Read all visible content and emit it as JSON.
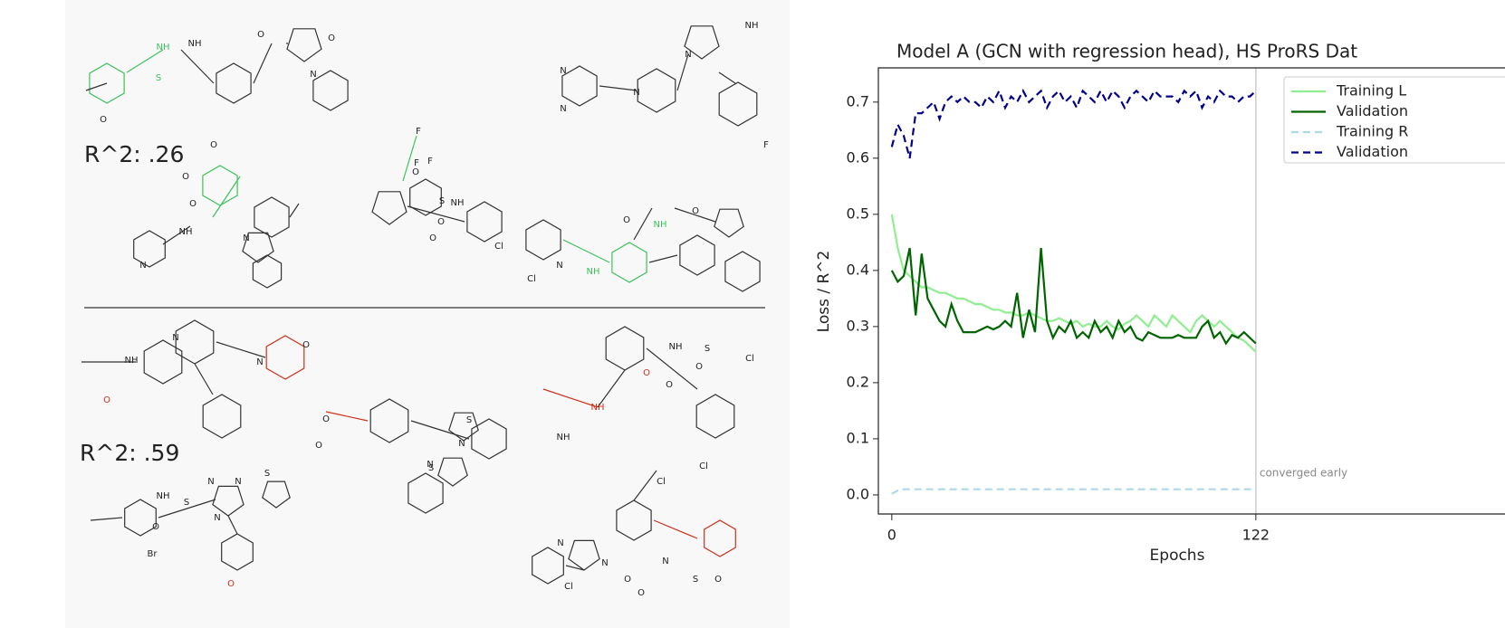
{
  "figure": {
    "group_labels": [
      "R^2: .26",
      "R^2: .59"
    ],
    "molecules": [
      {
        "atoms": [
          "NH",
          "S",
          "NH",
          "O",
          "O",
          "N",
          "O"
        ]
      },
      {
        "atoms": [
          "NH",
          "N",
          "N",
          "N",
          "N",
          "F"
        ]
      },
      {
        "atoms": [
          "O",
          "O",
          "O",
          "NH",
          "N",
          "N"
        ]
      },
      {
        "atoms": [
          "F",
          "F",
          "F",
          "O",
          "S",
          "O",
          "O",
          "NH"
        ]
      },
      {
        "atoms": [
          "O",
          "O",
          "NH",
          "Cl",
          "Cl",
          "NH",
          "N"
        ]
      },
      {
        "atoms": [
          "NH",
          "O",
          "N",
          "N",
          "O"
        ]
      },
      {
        "atoms": [
          "O",
          "O",
          "S",
          "N",
          "S",
          "N"
        ]
      },
      {
        "atoms": [
          "NH",
          "S",
          "O",
          "O",
          "Cl",
          "O",
          "NH",
          "NH",
          "Cl"
        ]
      },
      {
        "atoms": [
          "NH",
          "O",
          "S",
          "N",
          "N",
          "N",
          "S",
          "Br",
          "O"
        ]
      },
      {
        "atoms": [
          "Cl",
          "N",
          "N",
          "O",
          "N",
          "O",
          "Cl",
          "S",
          "O"
        ]
      }
    ]
  },
  "chart_data": {
    "type": "line",
    "title": "Model A (GCN with regression head), HS ProRS Dat",
    "x_label": "Epochs",
    "y_label": "Loss / R^2",
    "annotation": "converged early",
    "converged_at": 122,
    "x": [
      0,
      2,
      4,
      6,
      8,
      10,
      12,
      14,
      16,
      18,
      20,
      22,
      24,
      26,
      28,
      30,
      32,
      34,
      36,
      38,
      40,
      42,
      44,
      46,
      48,
      50,
      52,
      54,
      56,
      58,
      60,
      62,
      64,
      66,
      68,
      70,
      72,
      74,
      76,
      78,
      80,
      82,
      84,
      86,
      88,
      90,
      92,
      94,
      96,
      98,
      100,
      102,
      104,
      106,
      108,
      110,
      112,
      114,
      116,
      118,
      120,
      122
    ],
    "xlim": [
      -4.5,
      205.5
    ],
    "xticks": [
      0,
      122
    ],
    "ylim": [
      -0.034,
      0.761
    ],
    "yticks": [
      {
        "value": 0,
        "label": "0.0"
      },
      0.1,
      0.2,
      0.3,
      0.4,
      0.5,
      0.6,
      0.7
    ],
    "series": [
      {
        "name": "Training L",
        "color": "#90ee90",
        "dash": "solid",
        "values": [
          0.5,
          0.44,
          0.4,
          0.39,
          0.38,
          0.37,
          0.37,
          0.365,
          0.36,
          0.36,
          0.355,
          0.35,
          0.35,
          0.345,
          0.34,
          0.34,
          0.335,
          0.33,
          0.33,
          0.325,
          0.325,
          0.32,
          0.32,
          0.325,
          0.32,
          0.315,
          0.31,
          0.31,
          0.315,
          0.31,
          0.305,
          0.31,
          0.3,
          0.305,
          0.3,
          0.3,
          0.31,
          0.3,
          0.295,
          0.305,
          0.31,
          0.32,
          0.31,
          0.3,
          0.32,
          0.31,
          0.3,
          0.32,
          0.31,
          0.3,
          0.29,
          0.31,
          0.32,
          0.31,
          0.3,
          0.31,
          0.3,
          0.29,
          0.28,
          0.275,
          0.265,
          0.255
        ]
      },
      {
        "name": "Validation",
        "color": "#006400",
        "dash": "solid",
        "values": [
          0.4,
          0.38,
          0.39,
          0.44,
          0.32,
          0.43,
          0.35,
          0.33,
          0.31,
          0.3,
          0.34,
          0.31,
          0.29,
          0.29,
          0.29,
          0.295,
          0.3,
          0.295,
          0.3,
          0.31,
          0.3,
          0.36,
          0.28,
          0.33,
          0.29,
          0.44,
          0.31,
          0.28,
          0.3,
          0.29,
          0.31,
          0.28,
          0.29,
          0.28,
          0.31,
          0.29,
          0.3,
          0.28,
          0.31,
          0.29,
          0.3,
          0.28,
          0.275,
          0.29,
          0.285,
          0.28,
          0.28,
          0.28,
          0.285,
          0.28,
          0.28,
          0.28,
          0.3,
          0.31,
          0.28,
          0.29,
          0.27,
          0.285,
          0.28,
          0.29,
          0.28,
          0.27
        ]
      },
      {
        "name": "Training R",
        "color": "#add8e6",
        "dash": "dashed",
        "values": [
          0.002,
          0.008,
          0.01,
          0.01,
          0.01,
          0.01,
          0.01,
          0.01,
          0.01,
          0.01,
          0.01,
          0.01,
          0.01,
          0.01,
          0.01,
          0.01,
          0.01,
          0.01,
          0.01,
          0.01,
          0.01,
          0.01,
          0.01,
          0.01,
          0.01,
          0.01,
          0.01,
          0.01,
          0.01,
          0.01,
          0.01,
          0.01,
          0.01,
          0.01,
          0.01,
          0.01,
          0.01,
          0.01,
          0.01,
          0.01,
          0.01,
          0.01,
          0.01,
          0.01,
          0.01,
          0.01,
          0.01,
          0.01,
          0.01,
          0.01,
          0.01,
          0.01,
          0.01,
          0.01,
          0.01,
          0.01,
          0.01,
          0.01,
          0.01,
          0.01,
          0.01,
          0.01
        ]
      },
      {
        "name": "Validation",
        "color": "#00008b",
        "dash": "dashed",
        "values": [
          0.62,
          0.66,
          0.64,
          0.6,
          0.68,
          0.68,
          0.69,
          0.7,
          0.67,
          0.7,
          0.71,
          0.7,
          0.71,
          0.7,
          0.7,
          0.69,
          0.71,
          0.7,
          0.72,
          0.69,
          0.71,
          0.7,
          0.72,
          0.7,
          0.71,
          0.72,
          0.69,
          0.71,
          0.72,
          0.7,
          0.71,
          0.69,
          0.72,
          0.71,
          0.7,
          0.72,
          0.7,
          0.72,
          0.71,
          0.69,
          0.71,
          0.72,
          0.71,
          0.7,
          0.72,
          0.71,
          0.71,
          0.71,
          0.7,
          0.72,
          0.71,
          0.72,
          0.69,
          0.71,
          0.7,
          0.72,
          0.71,
          0.71,
          0.7,
          0.71,
          0.71,
          0.72
        ]
      }
    ]
  }
}
